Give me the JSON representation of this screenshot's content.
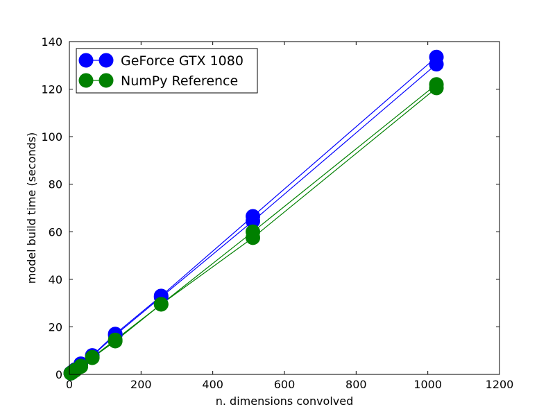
{
  "chart_data": {
    "type": "line",
    "title": "",
    "xlabel": "n. dimensions convolved",
    "ylabel": "model build time (seconds)",
    "xlim": [
      0,
      1200
    ],
    "ylim": [
      0,
      140
    ],
    "xticks": [
      0,
      200,
      400,
      600,
      800,
      1000,
      1200
    ],
    "yticks": [
      0,
      20,
      40,
      60,
      80,
      100,
      120,
      140
    ],
    "grid": false,
    "legend_position": "top-left",
    "x": [
      4,
      8,
      16,
      32,
      64,
      128,
      256,
      512,
      1024
    ],
    "series": [
      {
        "name": "GeForce GTX 1080",
        "color": "#0000ff",
        "group": 0,
        "values": [
          0.6,
          1.0,
          2.0,
          4.5,
          8.0,
          17.0,
          33.0,
          66.5,
          133.5
        ]
      },
      {
        "name": "GeForce GTX 1080",
        "color": "#0000ff",
        "group": 0,
        "values": [
          0.5,
          1.0,
          2.0,
          4.2,
          7.8,
          16.5,
          32.5,
          64.5,
          130.5
        ]
      },
      {
        "name": "NumPy Reference",
        "color": "#008000",
        "group": 1,
        "values": [
          0.5,
          0.9,
          1.8,
          3.5,
          7.0,
          14.0,
          29.5,
          60.0,
          122.0
        ]
      },
      {
        "name": "NumPy Reference",
        "color": "#008000",
        "group": 1,
        "values": [
          0.5,
          0.9,
          1.7,
          3.3,
          7.2,
          14.5,
          29.5,
          57.5,
          120.5
        ]
      }
    ],
    "legend": [
      {
        "label": "GeForce GTX 1080",
        "color": "#0000ff"
      },
      {
        "label": "NumPy Reference",
        "color": "#008000"
      }
    ]
  }
}
